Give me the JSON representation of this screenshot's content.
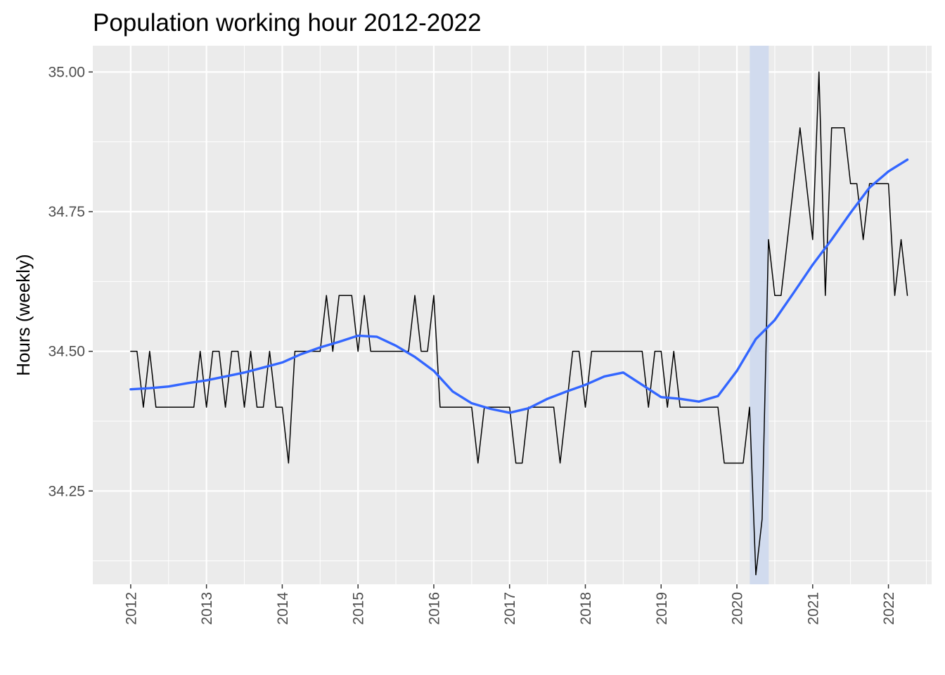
{
  "chart_data": {
    "type": "line",
    "title": "Population working hour 2012-2022",
    "xlabel": "",
    "ylabel": "Hours (weekly)",
    "x_tick_labels": [
      "2012",
      "2013",
      "2014",
      "2015",
      "2016",
      "2017",
      "2018",
      "2019",
      "2020",
      "2021",
      "2022"
    ],
    "y_tick_labels": [
      "34.25",
      "34.50",
      "34.75",
      "35.00"
    ],
    "y_ticks": [
      34.25,
      34.5,
      34.75,
      35.0
    ],
    "xlim": [
      2011.5,
      2022.57
    ],
    "ylim": [
      34.083,
      35.047
    ],
    "grid": true,
    "background": "#ebebeb",
    "series": [
      {
        "color": "#000000",
        "points": [
          [
            2012.0,
            34.5
          ],
          [
            2012.083,
            34.5
          ],
          [
            2012.167,
            34.4
          ],
          [
            2012.25,
            34.5
          ],
          [
            2012.333,
            34.4
          ],
          [
            2012.417,
            34.4
          ],
          [
            2012.5,
            34.4
          ],
          [
            2012.583,
            34.4
          ],
          [
            2012.667,
            34.4
          ],
          [
            2012.75,
            34.4
          ],
          [
            2012.833,
            34.4
          ],
          [
            2012.917,
            34.5
          ],
          [
            2013.0,
            34.4
          ],
          [
            2013.083,
            34.5
          ],
          [
            2013.167,
            34.5
          ],
          [
            2013.25,
            34.4
          ],
          [
            2013.333,
            34.5
          ],
          [
            2013.417,
            34.5
          ],
          [
            2013.5,
            34.4
          ],
          [
            2013.583,
            34.5
          ],
          [
            2013.667,
            34.4
          ],
          [
            2013.75,
            34.4
          ],
          [
            2013.833,
            34.5
          ],
          [
            2013.917,
            34.4
          ],
          [
            2014.0,
            34.4
          ],
          [
            2014.083,
            34.3
          ],
          [
            2014.167,
            34.5
          ],
          [
            2014.25,
            34.5
          ],
          [
            2014.333,
            34.5
          ],
          [
            2014.417,
            34.5
          ],
          [
            2014.5,
            34.5
          ],
          [
            2014.583,
            34.6
          ],
          [
            2014.667,
            34.5
          ],
          [
            2014.75,
            34.6
          ],
          [
            2014.833,
            34.6
          ],
          [
            2014.917,
            34.6
          ],
          [
            2015.0,
            34.5
          ],
          [
            2015.083,
            34.6
          ],
          [
            2015.167,
            34.5
          ],
          [
            2015.25,
            34.5
          ],
          [
            2015.333,
            34.5
          ],
          [
            2015.417,
            34.5
          ],
          [
            2015.5,
            34.5
          ],
          [
            2015.583,
            34.5
          ],
          [
            2015.667,
            34.5
          ],
          [
            2015.75,
            34.6
          ],
          [
            2015.833,
            34.5
          ],
          [
            2015.917,
            34.5
          ],
          [
            2016.0,
            34.6
          ],
          [
            2016.083,
            34.4
          ],
          [
            2016.167,
            34.4
          ],
          [
            2016.25,
            34.4
          ],
          [
            2016.333,
            34.4
          ],
          [
            2016.417,
            34.4
          ],
          [
            2016.5,
            34.4
          ],
          [
            2016.583,
            34.3
          ],
          [
            2016.667,
            34.4
          ],
          [
            2016.75,
            34.4
          ],
          [
            2016.833,
            34.4
          ],
          [
            2016.917,
            34.4
          ],
          [
            2017.0,
            34.4
          ],
          [
            2017.083,
            34.3
          ],
          [
            2017.167,
            34.3
          ],
          [
            2017.25,
            34.4
          ],
          [
            2017.333,
            34.4
          ],
          [
            2017.417,
            34.4
          ],
          [
            2017.5,
            34.4
          ],
          [
            2017.583,
            34.4
          ],
          [
            2017.667,
            34.3
          ],
          [
            2017.75,
            34.4
          ],
          [
            2017.833,
            34.5
          ],
          [
            2017.917,
            34.5
          ],
          [
            2018.0,
            34.4
          ],
          [
            2018.083,
            34.5
          ],
          [
            2018.167,
            34.5
          ],
          [
            2018.25,
            34.5
          ],
          [
            2018.333,
            34.5
          ],
          [
            2018.417,
            34.5
          ],
          [
            2018.5,
            34.5
          ],
          [
            2018.583,
            34.5
          ],
          [
            2018.667,
            34.5
          ],
          [
            2018.75,
            34.5
          ],
          [
            2018.833,
            34.4
          ],
          [
            2018.917,
            34.5
          ],
          [
            2019.0,
            34.5
          ],
          [
            2019.083,
            34.4
          ],
          [
            2019.167,
            34.5
          ],
          [
            2019.25,
            34.4
          ],
          [
            2019.333,
            34.4
          ],
          [
            2019.417,
            34.4
          ],
          [
            2019.5,
            34.4
          ],
          [
            2019.583,
            34.4
          ],
          [
            2019.667,
            34.4
          ],
          [
            2019.75,
            34.4
          ],
          [
            2019.833,
            34.3
          ],
          [
            2019.917,
            34.3
          ],
          [
            2020.0,
            34.3
          ],
          [
            2020.083,
            34.3
          ],
          [
            2020.167,
            34.4
          ],
          [
            2020.25,
            34.1
          ],
          [
            2020.333,
            34.2
          ],
          [
            2020.417,
            34.7
          ],
          [
            2020.5,
            34.6
          ],
          [
            2020.583,
            34.6
          ],
          [
            2020.667,
            34.7
          ],
          [
            2020.75,
            34.8
          ],
          [
            2020.833,
            34.9
          ],
          [
            2020.917,
            34.8
          ],
          [
            2021.0,
            34.7
          ],
          [
            2021.083,
            35.0
          ],
          [
            2021.167,
            34.6
          ],
          [
            2021.25,
            34.9
          ],
          [
            2021.333,
            34.9
          ],
          [
            2021.417,
            34.9
          ],
          [
            2021.5,
            34.8
          ],
          [
            2021.583,
            34.8
          ],
          [
            2021.667,
            34.7
          ],
          [
            2021.75,
            34.8
          ],
          [
            2021.833,
            34.8
          ],
          [
            2021.917,
            34.8
          ],
          [
            2022.0,
            34.8
          ],
          [
            2022.083,
            34.6
          ],
          [
            2022.167,
            34.7
          ],
          [
            2022.25,
            34.6
          ]
        ]
      },
      {
        "color": "#3366ff",
        "points": [
          [
            2012.0,
            34.432
          ],
          [
            2012.25,
            34.434
          ],
          [
            2012.5,
            34.437
          ],
          [
            2012.75,
            34.443
          ],
          [
            2013.0,
            34.448
          ],
          [
            2013.25,
            34.455
          ],
          [
            2013.5,
            34.462
          ],
          [
            2013.75,
            34.471
          ],
          [
            2014.0,
            34.48
          ],
          [
            2014.25,
            34.495
          ],
          [
            2014.5,
            34.507
          ],
          [
            2014.75,
            34.517
          ],
          [
            2015.0,
            34.528
          ],
          [
            2015.25,
            34.526
          ],
          [
            2015.5,
            34.51
          ],
          [
            2015.75,
            34.49
          ],
          [
            2016.0,
            34.465
          ],
          [
            2016.25,
            34.428
          ],
          [
            2016.5,
            34.407
          ],
          [
            2016.75,
            34.397
          ],
          [
            2017.0,
            34.39
          ],
          [
            2017.25,
            34.398
          ],
          [
            2017.5,
            34.415
          ],
          [
            2017.75,
            34.428
          ],
          [
            2018.0,
            34.44
          ],
          [
            2018.25,
            34.455
          ],
          [
            2018.5,
            34.462
          ],
          [
            2018.75,
            34.44
          ],
          [
            2019.0,
            34.418
          ],
          [
            2019.25,
            34.415
          ],
          [
            2019.5,
            34.41
          ],
          [
            2019.75,
            34.42
          ],
          [
            2020.0,
            34.465
          ],
          [
            2020.25,
            34.522
          ],
          [
            2020.5,
            34.556
          ],
          [
            2020.75,
            34.605
          ],
          [
            2021.0,
            34.655
          ],
          [
            2021.25,
            34.7
          ],
          [
            2021.5,
            34.748
          ],
          [
            2021.75,
            34.793
          ],
          [
            2022.0,
            34.822
          ],
          [
            2022.25,
            34.843
          ]
        ]
      }
    ],
    "shaded_region": {
      "x": [
        2020.17,
        2020.42
      ],
      "color": "#d1dbee"
    }
  }
}
